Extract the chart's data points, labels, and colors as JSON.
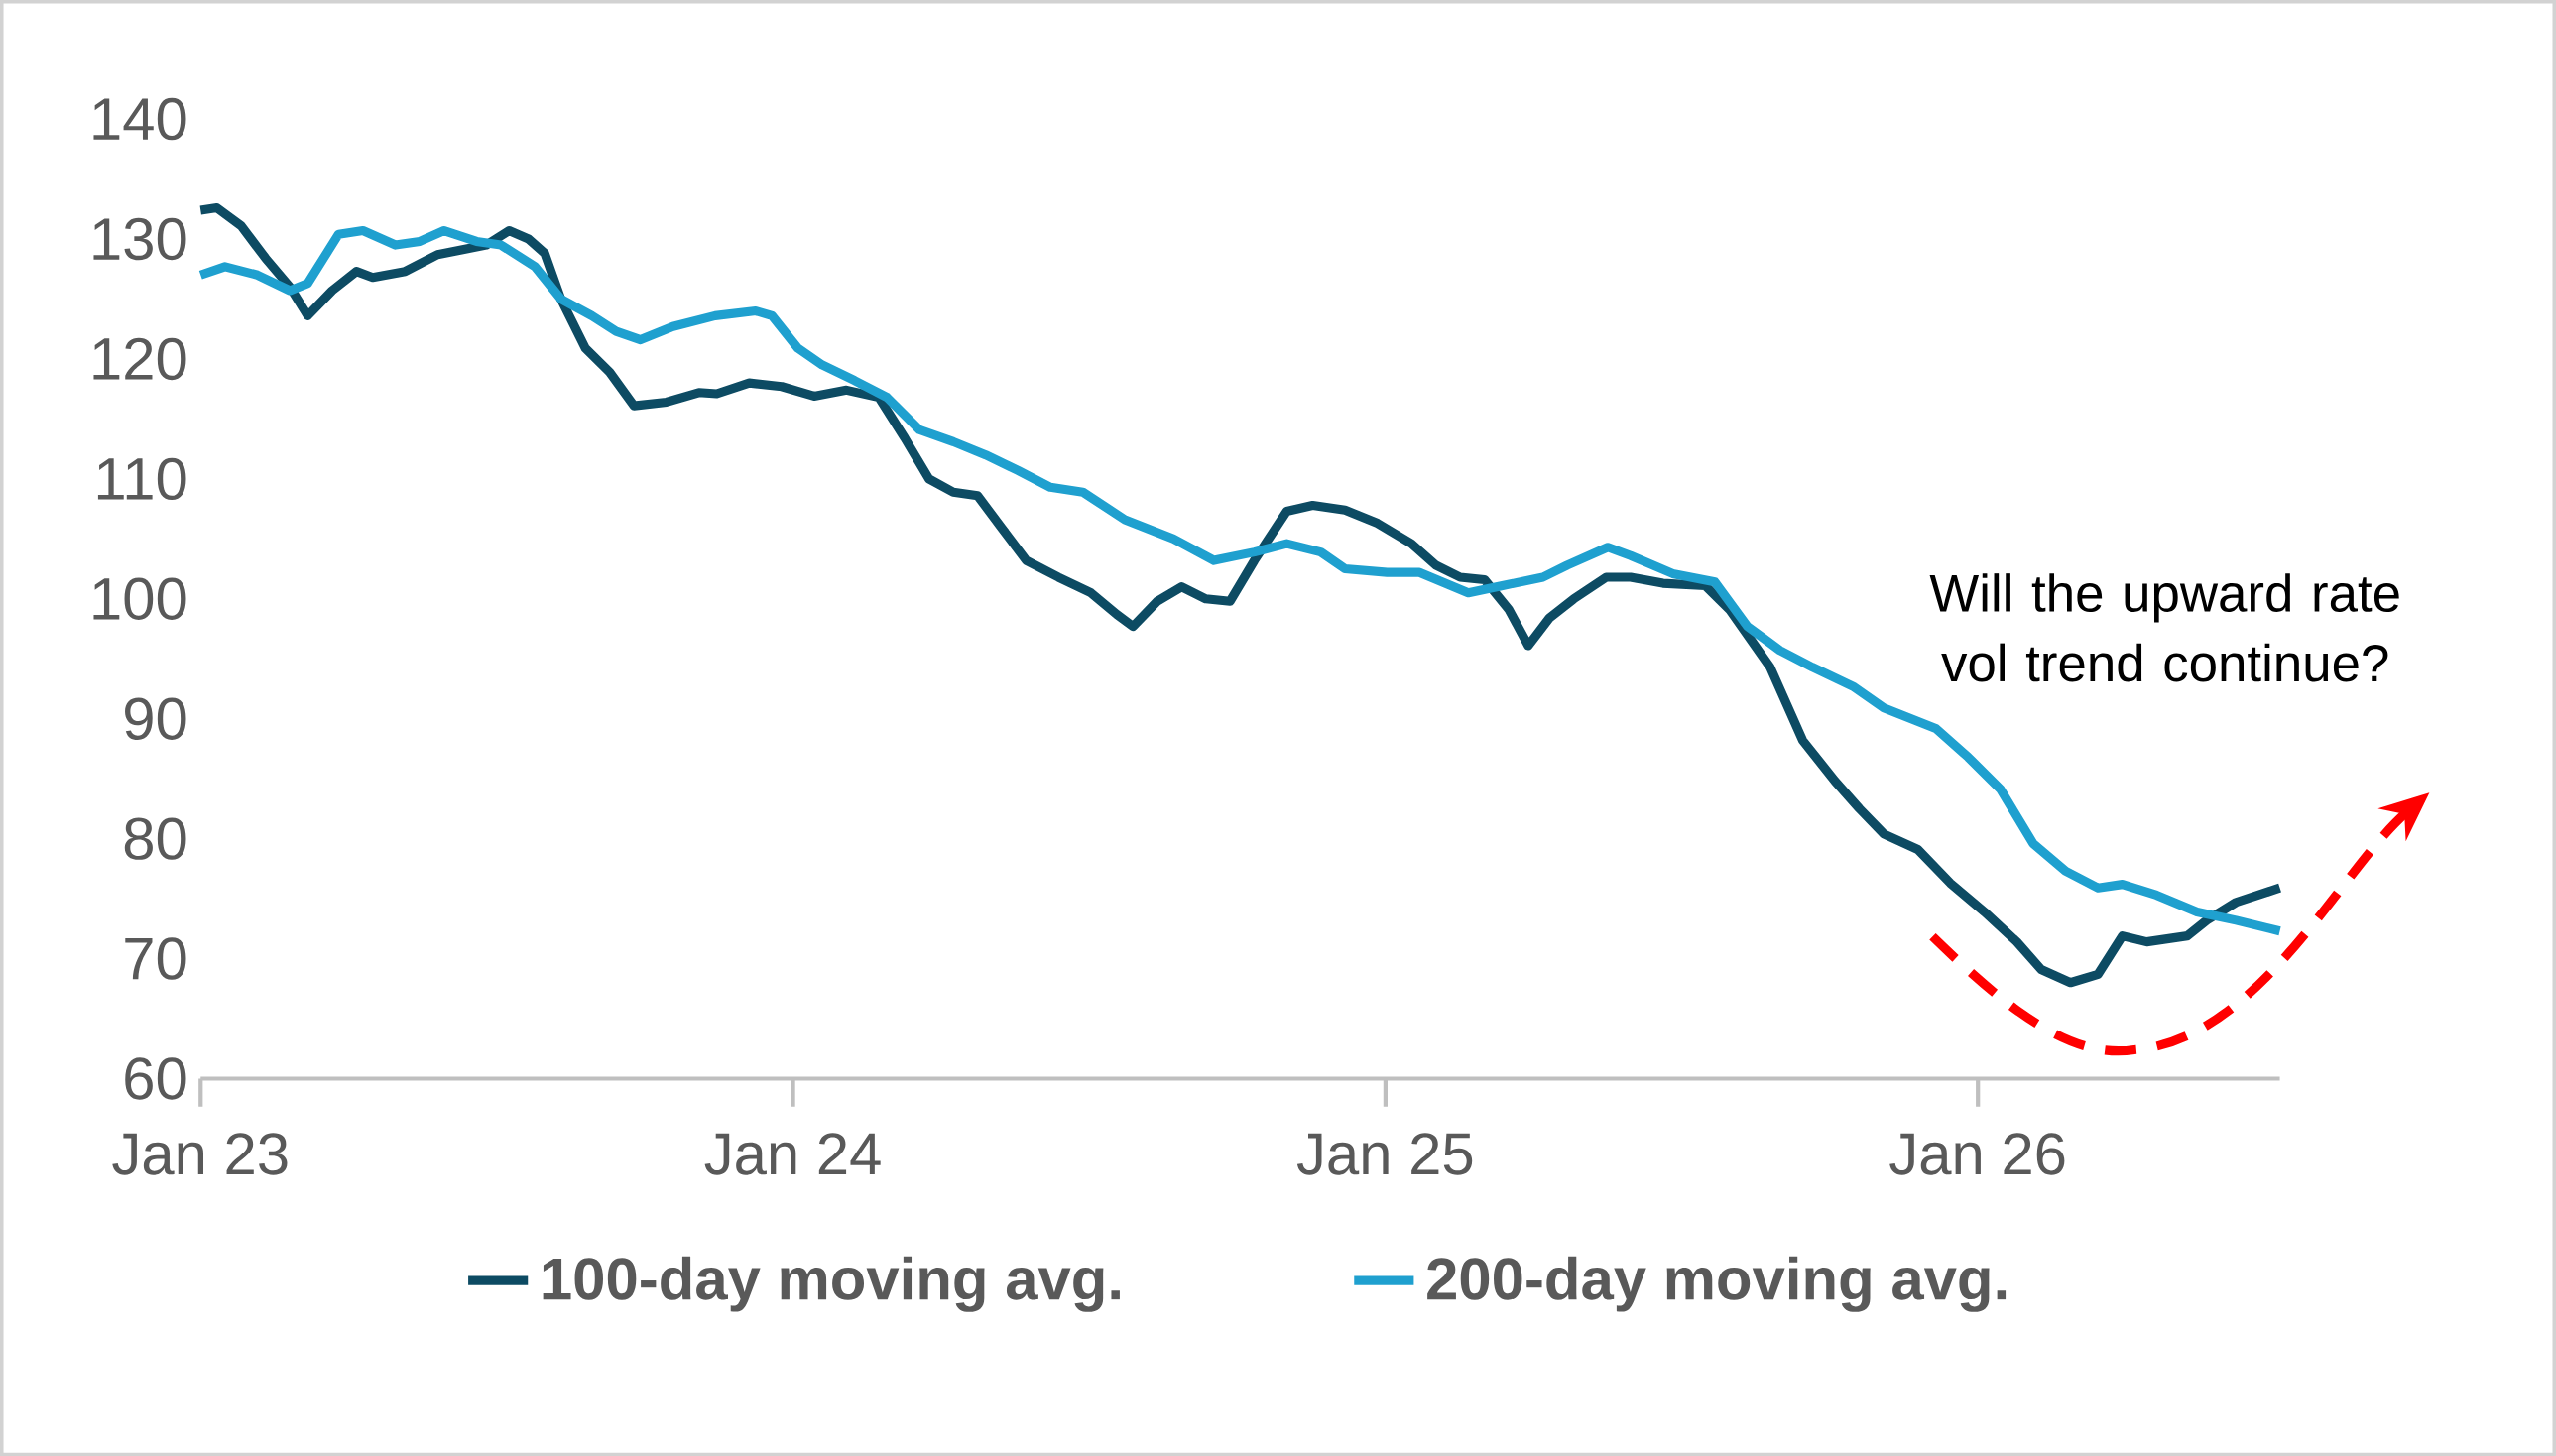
{
  "chart_data": {
    "type": "line",
    "annotations": [
      "Will the upward rate vol trend continue?"
    ],
    "xlim": [
      "2023-01-01",
      "2026-07-06"
    ],
    "xticks": [
      {
        "value": "2023-01-01",
        "label": "Jan 23"
      },
      {
        "value": "2024-01-01",
        "label": "Jan 24"
      },
      {
        "value": "2025-01-01",
        "label": "Jan 25"
      },
      {
        "value": "2026-01-01",
        "label": "Jan 26"
      }
    ],
    "ylim": [
      60,
      140
    ],
    "yticks": [
      60,
      70,
      80,
      90,
      100,
      110,
      120,
      130,
      140
    ],
    "grid": false,
    "legend": "bottom",
    "marker": "none",
    "line_style": "solid",
    "series": [
      {
        "name": "100-day moving avg.",
        "color": "#0d4b63",
        "x": [
          "2023-01-01",
          "2023-01-11",
          "2023-01-26",
          "2023-02-10",
          "2023-02-25",
          "2023-03-08",
          "2023-03-23",
          "2023-04-07",
          "2023-04-17",
          "2023-05-07",
          "2023-05-27",
          "2023-06-11",
          "2023-06-26",
          "2023-07-10",
          "2023-07-22",
          "2023-08-01",
          "2023-08-11",
          "2023-08-26",
          "2023-09-10",
          "2023-09-25",
          "2023-10-15",
          "2023-11-04",
          "2023-11-15",
          "2023-12-05",
          "2023-12-25",
          "2024-01-14",
          "2024-02-03",
          "2024-02-23",
          "2024-03-10",
          "2024-03-25",
          "2024-04-09",
          "2024-04-24",
          "2024-05-09",
          "2024-05-24",
          "2024-06-13",
          "2024-07-03",
          "2024-07-19",
          "2024-07-29",
          "2024-08-13",
          "2024-08-28",
          "2024-09-12",
          "2024-09-27",
          "2024-10-12",
          "2024-11-01",
          "2024-11-17",
          "2024-12-07",
          "2024-12-27",
          "2025-01-17",
          "2025-02-01",
          "2025-02-16",
          "2025-03-03",
          "2025-03-18",
          "2025-03-30",
          "2025-04-12",
          "2025-04-27",
          "2025-05-17",
          "2025-06-01",
          "2025-06-21",
          "2025-07-17",
          "2025-08-01",
          "2025-08-26",
          "2025-09-15",
          "2025-10-05",
          "2025-10-20",
          "2025-11-04",
          "2025-11-25",
          "2025-12-15",
          "2026-01-05",
          "2026-01-25",
          "2026-02-09",
          "2026-02-27",
          "2026-03-16",
          "2026-03-31",
          "2026-04-15",
          "2026-05-10",
          "2026-05-22",
          "2026-06-09",
          "2026-07-06"
        ],
        "values": [
          132.4,
          132.6,
          131.1,
          128.4,
          126,
          123.6,
          125.7,
          127.3,
          126.8,
          127.3,
          128.7,
          129.1,
          129.5,
          130.7,
          130,
          128.8,
          125,
          120.9,
          118.9,
          116.1,
          116.4,
          117.2,
          117.1,
          118,
          117.7,
          116.9,
          117.4,
          116.8,
          113.4,
          110,
          108.9,
          108.6,
          105.9,
          103.2,
          101.8,
          100.5,
          98.7,
          97.7,
          99.8,
          101,
          100,
          99.8,
          103.2,
          107.3,
          107.8,
          107.4,
          106.3,
          104.6,
          102.8,
          101.8,
          101.6,
          99.1,
          96.1,
          98.4,
          100,
          101.8,
          101.8,
          101.3,
          101.1,
          99.1,
          94.3,
          88.2,
          84.8,
          82.5,
          80.4,
          79.1,
          76.3,
          73.9,
          71.4,
          69.1,
          68,
          68.7,
          71.9,
          71.4,
          71.9,
          73.2,
          74.7,
          75.9
        ]
      },
      {
        "name": "200-day moving avg.",
        "color": "#1fa0cf",
        "x": [
          "2023-01-01",
          "2023-01-16",
          "2023-02-05",
          "2023-02-25",
          "2023-03-08",
          "2023-03-27",
          "2023-04-11",
          "2023-05-01",
          "2023-05-16",
          "2023-05-31",
          "2023-06-20",
          "2023-07-05",
          "2023-07-26",
          "2023-08-11",
          "2023-08-30",
          "2023-09-14",
          "2023-09-29",
          "2023-10-19",
          "2023-11-14",
          "2023-12-09",
          "2023-12-19",
          "2024-01-04",
          "2024-01-19",
          "2024-02-08",
          "2024-02-28",
          "2024-03-19",
          "2024-04-09",
          "2024-04-29",
          "2024-05-19",
          "2024-06-08",
          "2024-06-28",
          "2024-07-24",
          "2024-08-23",
          "2024-09-17",
          "2024-10-12",
          "2024-11-01",
          "2024-11-22",
          "2024-12-07",
          "2025-01-02",
          "2025-01-22",
          "2025-02-21",
          "2025-03-14",
          "2025-04-08",
          "2025-04-23",
          "2025-05-18",
          "2025-06-01",
          "2025-06-27",
          "2025-07-23",
          "2025-08-12",
          "2025-09-01",
          "2025-09-21",
          "2025-10-16",
          "2025-11-04",
          "2025-12-06",
          "2025-12-26",
          "2026-01-15",
          "2026-02-04",
          "2026-02-24",
          "2026-03-16",
          "2026-03-31",
          "2026-04-21",
          "2026-05-16",
          "2026-06-09",
          "2026-07-06"
        ],
        "values": [
          127,
          127.7,
          127,
          125.7,
          126.3,
          130.4,
          130.7,
          129.5,
          129.8,
          130.7,
          129.8,
          129.5,
          127.7,
          125,
          123.6,
          122.3,
          121.6,
          122.7,
          123.6,
          124,
          123.6,
          120.9,
          119.5,
          118.2,
          116.8,
          114.1,
          113.1,
          112,
          110.7,
          109.3,
          108.9,
          106.6,
          105,
          103.2,
          103.9,
          104.6,
          103.9,
          102.5,
          102.2,
          102.2,
          100.5,
          101.1,
          101.8,
          102.8,
          104.3,
          103.6,
          102.1,
          101.4,
          97.7,
          95.7,
          94.3,
          92.7,
          90.9,
          89.2,
          86.8,
          84.1,
          79.6,
          77.3,
          75.9,
          76.2,
          75.3,
          73.9,
          73.2,
          72.3
        ]
      }
    ]
  }
}
